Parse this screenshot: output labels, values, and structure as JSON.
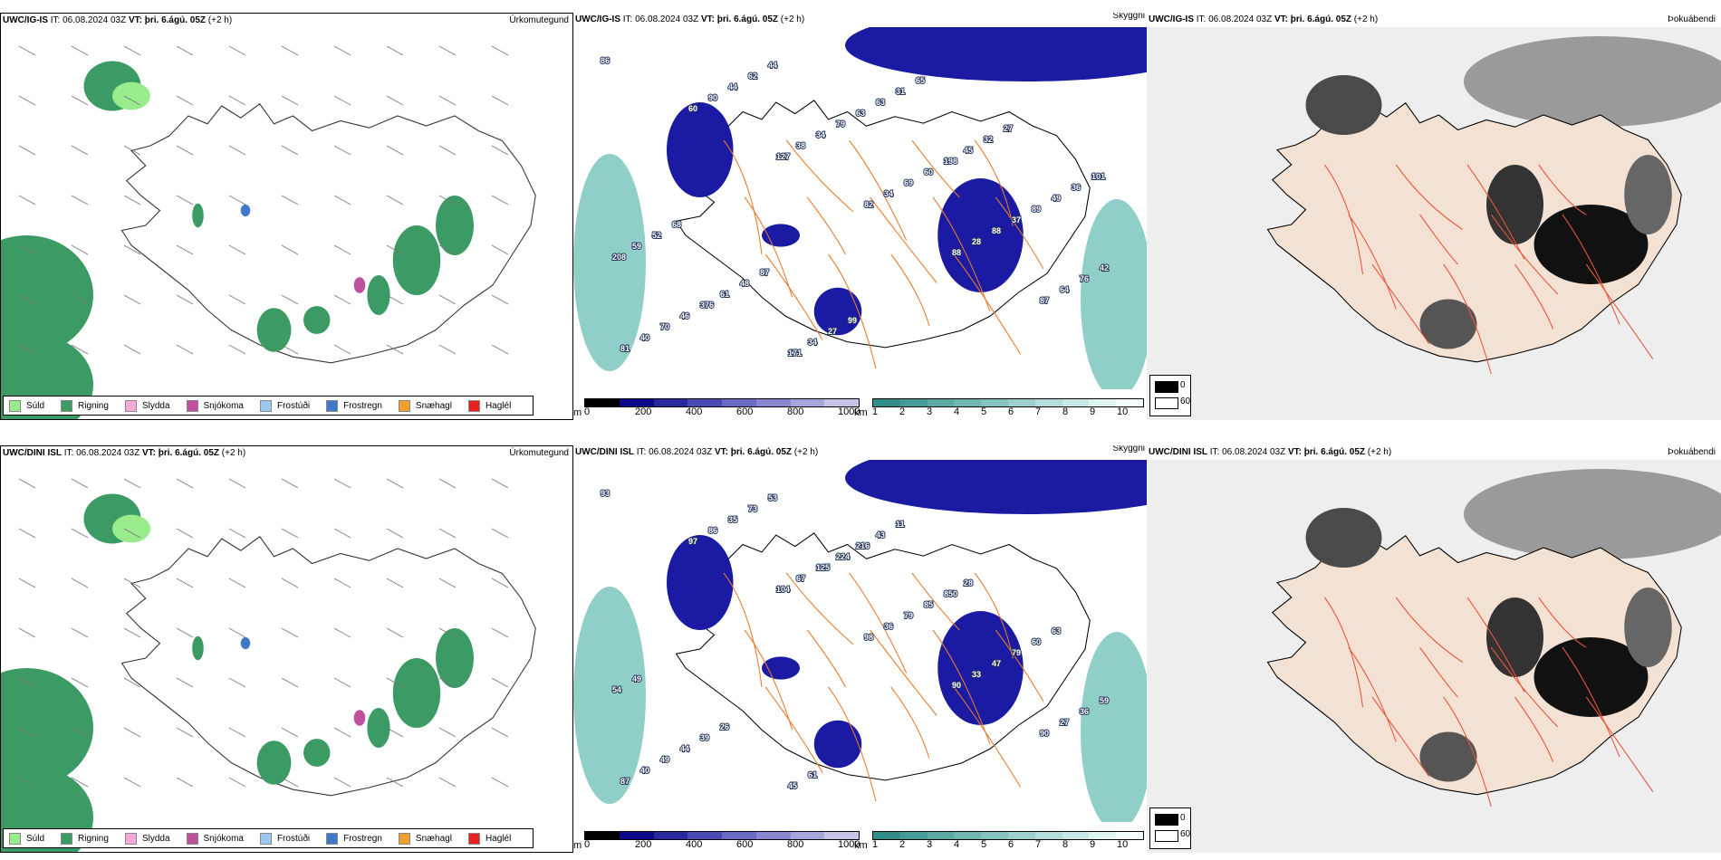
{
  "rows": [
    {
      "model": "UWC/IG-IS",
      "it_label": "IT:",
      "it_value": "06.08.2024 03Z",
      "vt_label": "VT:",
      "vt_value": "þri. 6.ágú. 05Z",
      "lead": "(+2 h)",
      "panel1_title": "Úrkomutegund",
      "panel2_title": "Skyggni",
      "panel3_title": "Þokuábendi",
      "labels": [
        "86",
        "60",
        "127",
        "82",
        "88",
        "87",
        "81",
        "90",
        "38",
        "34",
        "28",
        "64",
        "40",
        "44",
        "34",
        "69",
        "88",
        "76",
        "70",
        "62",
        "79",
        "60",
        "37",
        "42",
        "46",
        "44",
        "63",
        "198",
        "89",
        "208",
        "376",
        "171",
        "63",
        "45",
        "49",
        "59",
        "61",
        "34",
        "31",
        "32",
        "36",
        "52",
        "48",
        "27",
        "65",
        "27",
        "101",
        "68",
        "87",
        "99"
      ]
    },
    {
      "model": "UWC/DINI ISL",
      "it_label": "IT:",
      "it_value": "06.08.2024 03Z",
      "vt_label": "VT:",
      "vt_value": "þri. 6.ágú. 05Z",
      "lead": "(+2 h)",
      "panel1_title": "Úrkomutegund",
      "panel2_title": "Skyggni",
      "panel3_title": "Þokuábendi",
      "labels": [
        "93",
        "97",
        "104",
        "98",
        "90",
        "90",
        "87",
        "86",
        "67",
        "36",
        "33",
        "27",
        "40",
        "35",
        "125",
        "79",
        "47",
        "36",
        "49",
        "73",
        "224",
        "85",
        "79",
        "59",
        "44",
        "53",
        "216",
        "850",
        "60",
        "54",
        "39",
        "45",
        "43",
        "28",
        "63",
        "49",
        "26",
        "61",
        "11"
      ]
    }
  ],
  "precip_legend": [
    {
      "label": "Súld",
      "color": "#98ec8c"
    },
    {
      "label": "Rigning",
      "color": "#3c9a64"
    },
    {
      "label": "Slydda",
      "color": "#f6a8d6"
    },
    {
      "label": "Snjókoma",
      "color": "#c04f9e"
    },
    {
      "label": "Frostúði",
      "color": "#9cc8f0"
    },
    {
      "label": "Frostregn",
      "color": "#3f79c8"
    },
    {
      "label": "Snæhagl",
      "color": "#f0a02c"
    },
    {
      "label": "Haglél",
      "color": "#e82020"
    }
  ],
  "height_bar": {
    "unit": "m",
    "ticks": [
      "0",
      "200",
      "400",
      "600",
      "800",
      "1000"
    ],
    "colors": [
      "#000000",
      "#0b0b8a",
      "#2a2aa0",
      "#4a4ab4",
      "#6a6ac4",
      "#8888d0",
      "#a6a6dc",
      "#c4c4e8"
    ]
  },
  "vis_bar": {
    "unit": "km",
    "ticks": [
      "1",
      "2",
      "3",
      "4",
      "5",
      "6",
      "7",
      "8",
      "9",
      "10"
    ],
    "colors": [
      "#2f8f88",
      "#449c96",
      "#5aa9a4",
      "#70b6b2",
      "#86c3c0",
      "#9cd0ce",
      "#b2dddb",
      "#c8eae8",
      "#def5f4",
      "#f4ffff"
    ]
  },
  "shade_legend": {
    "dark": "0",
    "light": "60"
  },
  "colors": {
    "rain": "#3c9a64",
    "drizzle": "#98ec8c",
    "fog_blue": "#1a1aa3",
    "roads": "#e87a2a",
    "land": "#f3e2d4"
  }
}
